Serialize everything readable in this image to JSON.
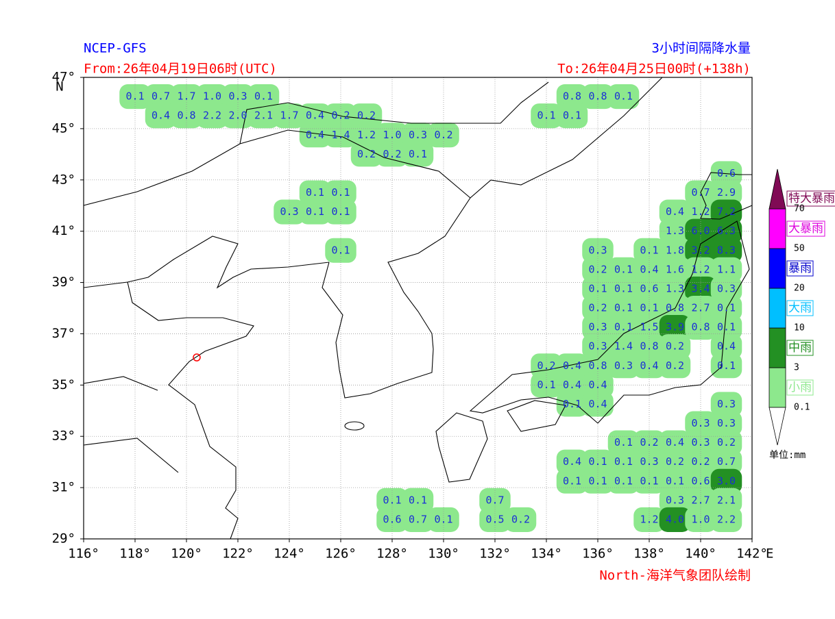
{
  "header": {
    "source": "NCEP-GFS",
    "title": "3小时间隔降水量",
    "from": "From:26年04月19日06时(UTC)",
    "to": "To:26年04月25日00时(+138h)",
    "credit": "North-海洋气象团队绘制"
  },
  "map": {
    "xlim": [
      116,
      142
    ],
    "ylim": [
      29,
      47
    ],
    "grid": true,
    "x_unit": "E",
    "y_unit": "N",
    "xticks": [
      {
        "value": 116,
        "label": "116°"
      },
      {
        "value": 118,
        "label": "118°"
      },
      {
        "value": 120,
        "label": "120°"
      },
      {
        "value": 122,
        "label": "122°"
      },
      {
        "value": 124,
        "label": "124°"
      },
      {
        "value": 126,
        "label": "126°"
      },
      {
        "value": 128,
        "label": "128°"
      },
      {
        "value": 130,
        "label": "130°"
      },
      {
        "value": 132,
        "label": "132°"
      },
      {
        "value": 134,
        "label": "134°"
      },
      {
        "value": 136,
        "label": "136°"
      },
      {
        "value": 138,
        "label": "138°"
      },
      {
        "value": 140,
        "label": "140°"
      },
      {
        "value": 142,
        "label": "142°"
      }
    ],
    "yticks": [
      {
        "value": 29,
        "label": "29°"
      },
      {
        "value": 31,
        "label": "31°"
      },
      {
        "value": 33,
        "label": "33°"
      },
      {
        "value": 35,
        "label": "35°"
      },
      {
        "value": 37,
        "label": "37°"
      },
      {
        "value": 39,
        "label": "39°"
      },
      {
        "value": 41,
        "label": "41°"
      },
      {
        "value": 43,
        "label": "43°"
      },
      {
        "value": 45,
        "label": "45°"
      },
      {
        "value": 47,
        "label": "47°"
      }
    ],
    "points": [
      {
        "lon": 118,
        "lat": 46.25,
        "value": 0.1
      },
      {
        "lon": 119,
        "lat": 46.25,
        "value": 0.7
      },
      {
        "lon": 120,
        "lat": 46.25,
        "value": 1.7
      },
      {
        "lon": 121,
        "lat": 46.25,
        "value": 1,
        "label": "1.0"
      },
      {
        "lon": 122,
        "lat": 46.25,
        "value": 0.3
      },
      {
        "lon": 123,
        "lat": 46.25,
        "value": 0.1
      },
      {
        "lon": 135,
        "lat": 46.25,
        "value": 0.8
      },
      {
        "lon": 136,
        "lat": 46.25,
        "value": 0.8
      },
      {
        "lon": 137,
        "lat": 46.25,
        "value": 0.1
      },
      {
        "lon": 119,
        "lat": 45.5,
        "value": 0.4
      },
      {
        "lon": 120,
        "lat": 45.5,
        "value": 0.8
      },
      {
        "lon": 121,
        "lat": 45.5,
        "value": 2.2
      },
      {
        "lon": 122,
        "lat": 45.5,
        "value": 2,
        "label": "2.0"
      },
      {
        "lon": 123,
        "lat": 45.5,
        "value": 2.1
      },
      {
        "lon": 124,
        "lat": 45.5,
        "value": 1.7
      },
      {
        "lon": 125,
        "lat": 45.5,
        "value": 0.4
      },
      {
        "lon": 126,
        "lat": 45.5,
        "value": 0.2
      },
      {
        "lon": 127,
        "lat": 45.5,
        "value": 0.2
      },
      {
        "lon": 134,
        "lat": 45.5,
        "value": 0.1
      },
      {
        "lon": 135,
        "lat": 45.5,
        "value": 0.1
      },
      {
        "lon": 125,
        "lat": 44.75,
        "value": 0.4
      },
      {
        "lon": 126,
        "lat": 44.75,
        "value": 1.4
      },
      {
        "lon": 127,
        "lat": 44.75,
        "value": 1.2
      },
      {
        "lon": 128,
        "lat": 44.75,
        "value": 1,
        "label": "1.0"
      },
      {
        "lon": 129,
        "lat": 44.75,
        "value": 0.3
      },
      {
        "lon": 130,
        "lat": 44.75,
        "value": 0.2
      },
      {
        "lon": 127,
        "lat": 44,
        "value": 0.2
      },
      {
        "lon": 128,
        "lat": 44,
        "value": 0.2
      },
      {
        "lon": 129,
        "lat": 44,
        "value": 0.1
      },
      {
        "lon": 141,
        "lat": 43.25,
        "value": 0.6
      },
      {
        "lon": 125,
        "lat": 42.5,
        "value": 0.1
      },
      {
        "lon": 126,
        "lat": 42.5,
        "value": 0.1
      },
      {
        "lon": 140,
        "lat": 42.5,
        "value": 0.7
      },
      {
        "lon": 141,
        "lat": 42.5,
        "value": 2.9
      },
      {
        "lon": 124,
        "lat": 41.75,
        "value": 0.3
      },
      {
        "lon": 125,
        "lat": 41.75,
        "value": 0.1
      },
      {
        "lon": 126,
        "lat": 41.75,
        "value": 0.1
      },
      {
        "lon": 139,
        "lat": 41.75,
        "value": 0.4
      },
      {
        "lon": 140,
        "lat": 41.75,
        "value": 1.2
      },
      {
        "lon": 141,
        "lat": 41.75,
        "value": 7.2
      },
      {
        "lon": 139,
        "lat": 41,
        "value": 1.3
      },
      {
        "lon": 140,
        "lat": 41,
        "value": 6,
        "label": "6.0"
      },
      {
        "lon": 141,
        "lat": 41,
        "value": 6.3
      },
      {
        "lon": 126,
        "lat": 40.25,
        "value": 0.1
      },
      {
        "lon": 136,
        "lat": 40.25,
        "value": 0.3
      },
      {
        "lon": 138,
        "lat": 40.25,
        "value": 0.1
      },
      {
        "lon": 139,
        "lat": 40.25,
        "value": 1.8
      },
      {
        "lon": 140,
        "lat": 40.25,
        "value": 3.2
      },
      {
        "lon": 141,
        "lat": 40.25,
        "value": 8.3
      },
      {
        "lon": 136,
        "lat": 39.5,
        "value": 0.2
      },
      {
        "lon": 137,
        "lat": 39.5,
        "value": 0.1
      },
      {
        "lon": 138,
        "lat": 39.5,
        "value": 0.4
      },
      {
        "lon": 139,
        "lat": 39.5,
        "value": 1.6
      },
      {
        "lon": 140,
        "lat": 39.5,
        "value": 1.2
      },
      {
        "lon": 141,
        "lat": 39.5,
        "value": 1.1
      },
      {
        "lon": 136,
        "lat": 38.75,
        "value": 0.1
      },
      {
        "lon": 137,
        "lat": 38.75,
        "value": 0.1
      },
      {
        "lon": 138,
        "lat": 38.75,
        "value": 0.6
      },
      {
        "lon": 139,
        "lat": 38.75,
        "value": 1.3
      },
      {
        "lon": 140,
        "lat": 38.75,
        "value": 3.4
      },
      {
        "lon": 141,
        "lat": 38.75,
        "value": 0.3
      },
      {
        "lon": 136,
        "lat": 38,
        "value": 0.2
      },
      {
        "lon": 137,
        "lat": 38,
        "value": 0.1
      },
      {
        "lon": 138,
        "lat": 38,
        "value": 0.1
      },
      {
        "lon": 139,
        "lat": 38,
        "value": 0.8
      },
      {
        "lon": 140,
        "lat": 38,
        "value": 2.7
      },
      {
        "lon": 141,
        "lat": 38,
        "value": 0.1
      },
      {
        "lon": 136,
        "lat": 37.25,
        "value": 0.3
      },
      {
        "lon": 137,
        "lat": 37.25,
        "value": 0.1
      },
      {
        "lon": 138,
        "lat": 37.25,
        "value": 1.5
      },
      {
        "lon": 139,
        "lat": 37.25,
        "value": 3.9
      },
      {
        "lon": 140,
        "lat": 37.25,
        "value": 0.8
      },
      {
        "lon": 141,
        "lat": 37.25,
        "value": 0.1
      },
      {
        "lon": 136,
        "lat": 36.5,
        "value": 0.3
      },
      {
        "lon": 137,
        "lat": 36.5,
        "value": 1.4
      },
      {
        "lon": 138,
        "lat": 36.5,
        "value": 0.8
      },
      {
        "lon": 139,
        "lat": 36.5,
        "value": 0.2
      },
      {
        "lon": 141,
        "lat": 36.5,
        "value": 0.4
      },
      {
        "lon": 134,
        "lat": 35.75,
        "value": 0.2
      },
      {
        "lon": 135,
        "lat": 35.75,
        "value": 0.4
      },
      {
        "lon": 136,
        "lat": 35.75,
        "value": 0.8
      },
      {
        "lon": 137,
        "lat": 35.75,
        "value": 0.3
      },
      {
        "lon": 138,
        "lat": 35.75,
        "value": 0.4
      },
      {
        "lon": 139,
        "lat": 35.75,
        "value": 0.2
      },
      {
        "lon": 141,
        "lat": 35.75,
        "value": 0.1
      },
      {
        "lon": 134,
        "lat": 35,
        "value": 0.1
      },
      {
        "lon": 135,
        "lat": 35,
        "value": 0.4
      },
      {
        "lon": 136,
        "lat": 35,
        "value": 0.4
      },
      {
        "lon": 135,
        "lat": 34.25,
        "value": 0.1
      },
      {
        "lon": 136,
        "lat": 34.25,
        "value": 0.4
      },
      {
        "lon": 141,
        "lat": 34.25,
        "value": 0.3
      },
      {
        "lon": 140,
        "lat": 33.5,
        "value": 0.3
      },
      {
        "lon": 141,
        "lat": 33.5,
        "value": 0.3
      },
      {
        "lon": 137,
        "lat": 32.75,
        "value": 0.1
      },
      {
        "lon": 138,
        "lat": 32.75,
        "value": 0.2
      },
      {
        "lon": 139,
        "lat": 32.75,
        "value": 0.4
      },
      {
        "lon": 140,
        "lat": 32.75,
        "value": 0.3
      },
      {
        "lon": 141,
        "lat": 32.75,
        "value": 0.2
      },
      {
        "lon": 135,
        "lat": 32,
        "value": 0.4
      },
      {
        "lon": 136,
        "lat": 32,
        "value": 0.1
      },
      {
        "lon": 137,
        "lat": 32,
        "value": 0.1
      },
      {
        "lon": 138,
        "lat": 32,
        "value": 0.3
      },
      {
        "lon": 139,
        "lat": 32,
        "value": 0.2
      },
      {
        "lon": 140,
        "lat": 32,
        "value": 0.2
      },
      {
        "lon": 141,
        "lat": 32,
        "value": 0.7
      },
      {
        "lon": 135,
        "lat": 31.25,
        "value": 0.1
      },
      {
        "lon": 136,
        "lat": 31.25,
        "value": 0.1
      },
      {
        "lon": 137,
        "lat": 31.25,
        "value": 0.1
      },
      {
        "lon": 138,
        "lat": 31.25,
        "value": 0.1
      },
      {
        "lon": 139,
        "lat": 31.25,
        "value": 0.1
      },
      {
        "lon": 140,
        "lat": 31.25,
        "value": 0.6
      },
      {
        "lon": 141,
        "lat": 31.25,
        "value": 3,
        "label": "3.0"
      },
      {
        "lon": 128,
        "lat": 30.5,
        "value": 0.1
      },
      {
        "lon": 129,
        "lat": 30.5,
        "value": 0.1
      },
      {
        "lon": 132,
        "lat": 30.5,
        "value": 0.7
      },
      {
        "lon": 139,
        "lat": 30.5,
        "value": 0.3
      },
      {
        "lon": 140,
        "lat": 30.5,
        "value": 2.7
      },
      {
        "lon": 141,
        "lat": 30.5,
        "value": 2.1
      },
      {
        "lon": 128,
        "lat": 29.75,
        "value": 0.6
      },
      {
        "lon": 129,
        "lat": 29.75,
        "value": 0.7
      },
      {
        "lon": 130,
        "lat": 29.75,
        "value": 0.1
      },
      {
        "lon": 132,
        "lat": 29.75,
        "value": 0.5
      },
      {
        "lon": 133,
        "lat": 29.75,
        "value": 0.2
      },
      {
        "lon": 138,
        "lat": 29.75,
        "value": 1.2
      },
      {
        "lon": 139,
        "lat": 29.75,
        "value": 4,
        "label": "4.0"
      },
      {
        "lon": 140,
        "lat": 29.75,
        "value": 1,
        "label": "1.0"
      },
      {
        "lon": 141,
        "lat": 29.75,
        "value": 2.2
      }
    ]
  },
  "legend": {
    "unit": "单位:mm",
    "classes": [
      "小雨",
      "中雨",
      "大雨",
      "暴雨",
      "大暴雨",
      "特大暴雨"
    ],
    "colors": [
      "#8de88d",
      "#239023",
      "#00bfff",
      "#0000ff",
      "#ff00ff",
      "#800a55"
    ],
    "label_colors": [
      "#8de88d",
      "#239023",
      "#00bfff",
      "#0000cc",
      "#dd00dd",
      "#800a55"
    ],
    "ticks": [
      0.1,
      3,
      10,
      20,
      50,
      70
    ]
  }
}
